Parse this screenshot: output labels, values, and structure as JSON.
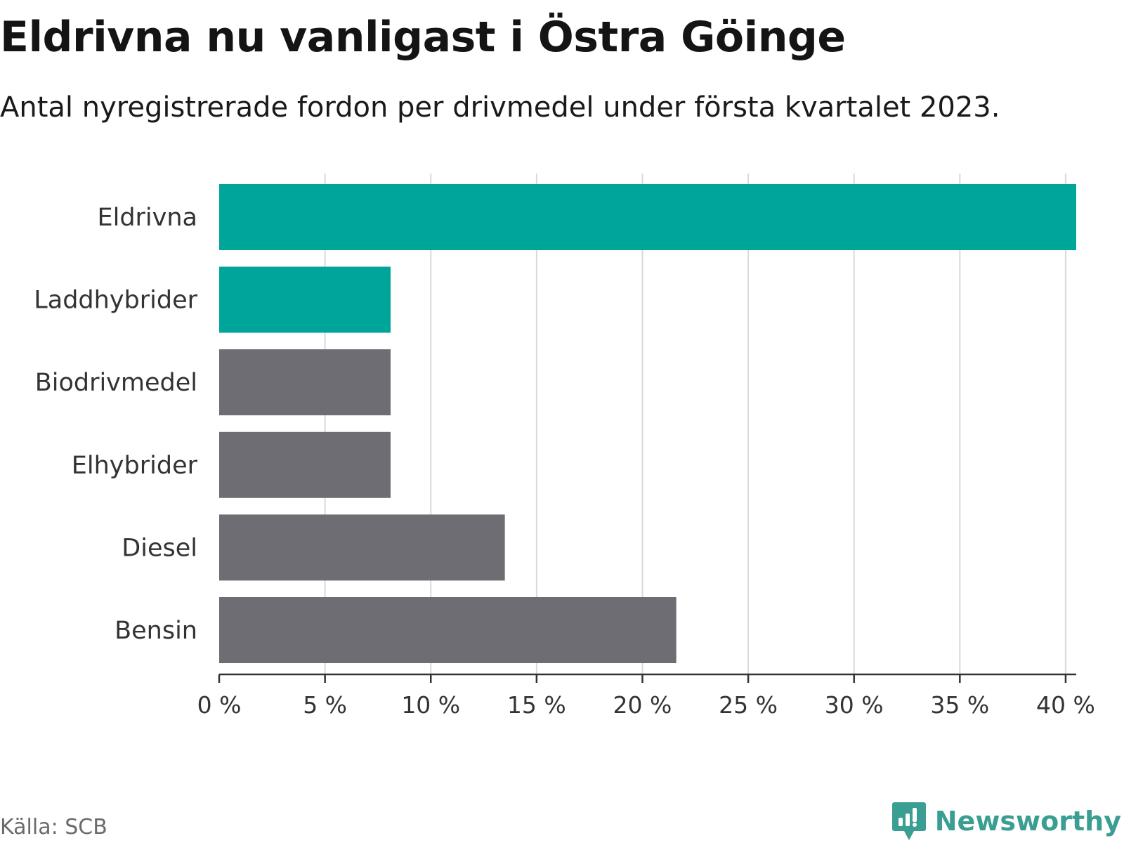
{
  "title": "Eldrivna nu vanligast i Östra Göinge",
  "subtitle": "Antal nyregistrerade fordon per drivmedel under första kvartalet 2023.",
  "source": "Källa: SCB",
  "brand": "Newsworthy",
  "colors": {
    "highlight": "#00a59a",
    "default": "#6e6d74",
    "grid": "#d9d9d9",
    "axis": "#333333",
    "brand": "#3a9e92"
  },
  "chart_data": {
    "type": "bar",
    "orientation": "horizontal",
    "categories": [
      "Eldrivna",
      "Laddhybrider",
      "Biodrivmedel",
      "Elhybrider",
      "Diesel",
      "Bensin"
    ],
    "values": [
      40.5,
      8.1,
      8.1,
      8.1,
      13.5,
      21.6
    ],
    "highlighted": [
      true,
      true,
      false,
      false,
      false,
      false
    ],
    "x_ticks": [
      0,
      5,
      10,
      15,
      20,
      25,
      30,
      35,
      40
    ],
    "x_tick_labels": [
      "0 %",
      "5 %",
      "10 %",
      "15 %",
      "20 %",
      "25 %",
      "30 %",
      "35 %",
      "40 %"
    ],
    "xlim": [
      0,
      40.5
    ],
    "xlabel": "",
    "ylabel": "",
    "grid": "vertical",
    "legend": "none"
  }
}
